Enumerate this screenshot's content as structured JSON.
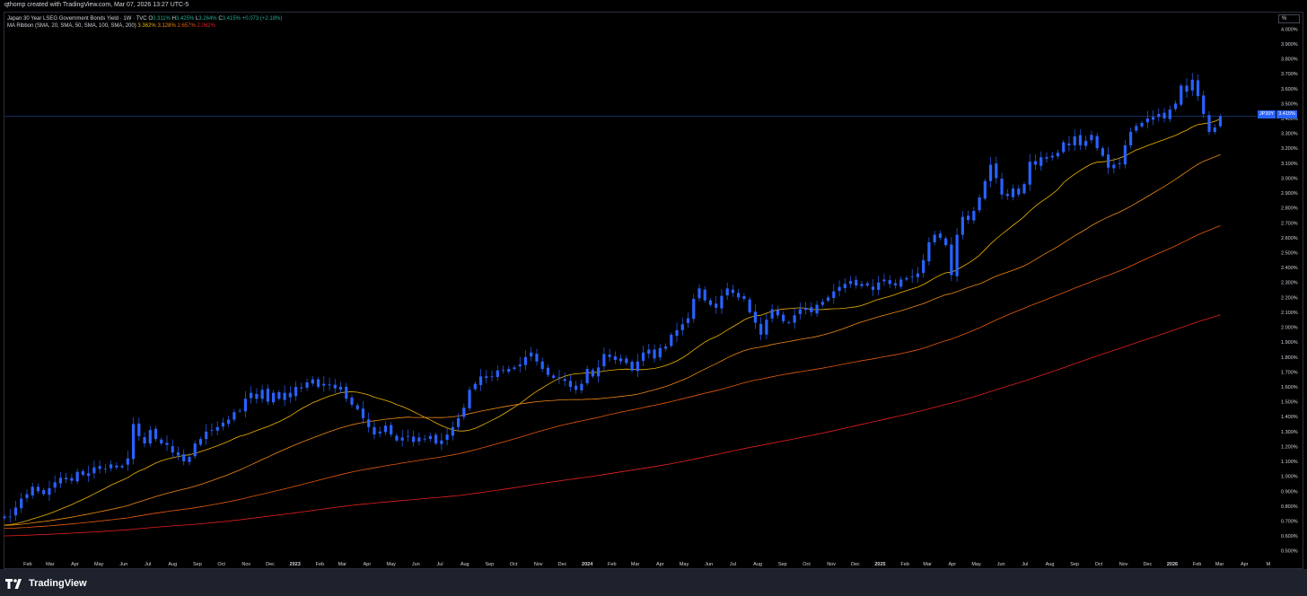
{
  "watermark": "qthomp created with TradingView.com, Mar 07, 2026 13:27 UTC-5",
  "legend": {
    "symbol": "Japan 30 Year LSEG Government Bonds Yield · 1W · TVC",
    "o_label": "O",
    "o": "3.311%",
    "h_label": "H",
    "h": "3.425%",
    "l_label": "L",
    "l": "3.264%",
    "c_label": "C",
    "c": "3.415%",
    "change": "+0.073 (+2.18%)",
    "ma_name": "MA Ribbon (SMA, 20, SMA, 50, SMA, 100, SMA, 200)",
    "ma20": "3.362%",
    "ma50": "3.128%",
    "ma100": "2.657%",
    "ma200": "2.062%"
  },
  "unit_button": "%",
  "price_badge": {
    "symbol": "JP30Y",
    "value": "3.415%"
  },
  "footer": {
    "brand": "TradingView"
  },
  "colors": {
    "background": "#000000",
    "candle": "#2962ff",
    "ma20": "#f0b400",
    "ma50": "#ef8a17",
    "ma100": "#e8590c",
    "ma200": "#e81f1f",
    "legend_value": "#22ab94"
  },
  "chart_data": {
    "type": "candlestick",
    "interval": "1W",
    "y_unit": "%",
    "ylim": [
      0.45,
      4.05
    ],
    "y_ticks": [
      0.5,
      0.6,
      0.7,
      0.8,
      0.9,
      1.0,
      1.1,
      1.2,
      1.3,
      1.4,
      1.5,
      1.6,
      1.7,
      1.8,
      1.9,
      2.0,
      2.1,
      2.2,
      2.3,
      2.4,
      2.5,
      2.6,
      2.7,
      2.8,
      2.9,
      3.0,
      3.1,
      3.2,
      3.3,
      3.4,
      3.5,
      3.6,
      3.7,
      3.8,
      3.9,
      4.0
    ],
    "y_tick_labels": [
      "0.500%",
      "0.600%",
      "0.700%",
      "0.800%",
      "0.900%",
      "1.000%",
      "1.100%",
      "1.200%",
      "1.300%",
      "1.400%",
      "1.500%",
      "1.600%",
      "1.700%",
      "1.800%",
      "1.900%",
      "2.000%",
      "2.100%",
      "2.200%",
      "2.300%",
      "2.400%",
      "2.500%",
      "2.600%",
      "2.700%",
      "2.800%",
      "2.900%",
      "3.000%",
      "3.100%",
      "3.200%",
      "3.300%",
      "3.400%",
      "3.500%",
      "3.600%",
      "3.700%",
      "3.800%",
      "3.900%",
      "4.000%"
    ],
    "x_axis": [
      {
        "label": "Feb",
        "date": "2022-02"
      },
      {
        "label": "Mar",
        "date": "2022-03"
      },
      {
        "label": "Apr",
        "date": "2022-04"
      },
      {
        "label": "May",
        "date": "2022-05"
      },
      {
        "label": "Jun",
        "date": "2022-06"
      },
      {
        "label": "Jul",
        "date": "2022-07"
      },
      {
        "label": "Aug",
        "date": "2022-08"
      },
      {
        "label": "Sep",
        "date": "2022-09"
      },
      {
        "label": "Oct",
        "date": "2022-10"
      },
      {
        "label": "Nov",
        "date": "2022-11"
      },
      {
        "label": "Dec",
        "date": "2022-12"
      },
      {
        "label": "2023",
        "date": "2023-01",
        "bold": true
      },
      {
        "label": "Feb",
        "date": "2023-02"
      },
      {
        "label": "Mar",
        "date": "2023-03"
      },
      {
        "label": "Apr",
        "date": "2023-04"
      },
      {
        "label": "May",
        "date": "2023-05"
      },
      {
        "label": "Jun",
        "date": "2023-06"
      },
      {
        "label": "Jul",
        "date": "2023-07"
      },
      {
        "label": "Aug",
        "date": "2023-08"
      },
      {
        "label": "Sep",
        "date": "2023-09"
      },
      {
        "label": "Oct",
        "date": "2023-10"
      },
      {
        "label": "Nov",
        "date": "2023-11"
      },
      {
        "label": "Dec",
        "date": "2023-12"
      },
      {
        "label": "2024",
        "date": "2024-01",
        "bold": true
      },
      {
        "label": "Feb",
        "date": "2024-02"
      },
      {
        "label": "Mar",
        "date": "2024-03"
      },
      {
        "label": "Apr",
        "date": "2024-04"
      },
      {
        "label": "May",
        "date": "2024-05"
      },
      {
        "label": "Jun",
        "date": "2024-06"
      },
      {
        "label": "Jul",
        "date": "2024-07"
      },
      {
        "label": "Aug",
        "date": "2024-08"
      },
      {
        "label": "Sep",
        "date": "2024-09"
      },
      {
        "label": "Oct",
        "date": "2024-10"
      },
      {
        "label": "Nov",
        "date": "2024-11"
      },
      {
        "label": "Dec",
        "date": "2024-12"
      },
      {
        "label": "2025",
        "date": "2025-01",
        "bold": true
      },
      {
        "label": "Feb",
        "date": "2025-02"
      },
      {
        "label": "Mar",
        "date": "2025-03"
      },
      {
        "label": "Apr",
        "date": "2025-04"
      },
      {
        "label": "May",
        "date": "2025-05"
      },
      {
        "label": "Jun",
        "date": "2025-06"
      },
      {
        "label": "Jul",
        "date": "2025-07"
      },
      {
        "label": "Aug",
        "date": "2025-08"
      },
      {
        "label": "Sep",
        "date": "2025-09"
      },
      {
        "label": "Oct",
        "date": "2025-10"
      },
      {
        "label": "Nov",
        "date": "2025-11"
      },
      {
        "label": "Dec",
        "date": "2025-12"
      },
      {
        "label": "2026",
        "date": "2026-01",
        "bold": true
      },
      {
        "label": "Feb",
        "date": "2026-02"
      },
      {
        "label": "Mar",
        "date": "2026-03"
      },
      {
        "label": "Apr",
        "date": "2026-04"
      },
      {
        "label": "M",
        "date": "2026-05"
      }
    ],
    "x_range": [
      "2022-01-03",
      "2026-05-10"
    ],
    "last_value": 3.415,
    "closes": [
      [
        "2022-01-03",
        0.73
      ],
      [
        "2022-01-10",
        0.73
      ],
      [
        "2022-01-17",
        0.79
      ],
      [
        "2022-01-24",
        0.85
      ],
      [
        "2022-01-31",
        0.88
      ],
      [
        "2022-02-07",
        0.93
      ],
      [
        "2022-02-14",
        0.9
      ],
      [
        "2022-02-21",
        0.88
      ],
      [
        "2022-02-28",
        0.92
      ],
      [
        "2022-03-07",
        0.96
      ],
      [
        "2022-03-14",
        0.99
      ],
      [
        "2022-03-21",
        0.98
      ],
      [
        "2022-03-28",
        0.97
      ],
      [
        "2022-04-04",
        1.03
      ],
      [
        "2022-04-11",
        1.01
      ],
      [
        "2022-04-18",
        1.02
      ],
      [
        "2022-04-25",
        1.06
      ],
      [
        "2022-05-02",
        1.05
      ],
      [
        "2022-05-09",
        1.05
      ],
      [
        "2022-05-16",
        1.08
      ],
      [
        "2022-05-23",
        1.06
      ],
      [
        "2022-05-30",
        1.07
      ],
      [
        "2022-06-06",
        1.12
      ],
      [
        "2022-06-13",
        1.35
      ],
      [
        "2022-06-20",
        1.27
      ],
      [
        "2022-06-27",
        1.22
      ],
      [
        "2022-07-04",
        1.31
      ],
      [
        "2022-07-11",
        1.25
      ],
      [
        "2022-07-18",
        1.22
      ],
      [
        "2022-07-25",
        1.21
      ],
      [
        "2022-08-01",
        1.16
      ],
      [
        "2022-08-08",
        1.14
      ],
      [
        "2022-08-15",
        1.1
      ],
      [
        "2022-08-22",
        1.13
      ],
      [
        "2022-08-29",
        1.22
      ],
      [
        "2022-09-05",
        1.25
      ],
      [
        "2022-09-12",
        1.3
      ],
      [
        "2022-09-19",
        1.31
      ],
      [
        "2022-09-26",
        1.33
      ],
      [
        "2022-10-03",
        1.36
      ],
      [
        "2022-10-10",
        1.38
      ],
      [
        "2022-10-17",
        1.43
      ],
      [
        "2022-10-24",
        1.44
      ],
      [
        "2022-10-31",
        1.52
      ],
      [
        "2022-11-07",
        1.56
      ],
      [
        "2022-11-14",
        1.52
      ],
      [
        "2022-11-21",
        1.58
      ],
      [
        "2022-11-28",
        1.5
      ],
      [
        "2022-12-05",
        1.56
      ],
      [
        "2022-12-12",
        1.52
      ],
      [
        "2022-12-19",
        1.56
      ],
      [
        "2022-12-26",
        1.53
      ],
      [
        "2023-01-02",
        1.6
      ],
      [
        "2023-01-09",
        1.59
      ],
      [
        "2023-01-16",
        1.63
      ],
      [
        "2023-01-23",
        1.65
      ],
      [
        "2023-01-30",
        1.6
      ],
      [
        "2023-02-06",
        1.62
      ],
      [
        "2023-02-13",
        1.61
      ],
      [
        "2023-02-20",
        1.59
      ],
      [
        "2023-02-27",
        1.6
      ],
      [
        "2023-03-06",
        1.52
      ],
      [
        "2023-03-13",
        1.48
      ],
      [
        "2023-03-20",
        1.45
      ],
      [
        "2023-03-27",
        1.39
      ],
      [
        "2023-04-03",
        1.33
      ],
      [
        "2023-04-10",
        1.28
      ],
      [
        "2023-04-17",
        1.3
      ],
      [
        "2023-04-24",
        1.34
      ],
      [
        "2023-05-01",
        1.28
      ],
      [
        "2023-05-08",
        1.24
      ],
      [
        "2023-05-15",
        1.26
      ],
      [
        "2023-05-22",
        1.27
      ],
      [
        "2023-05-29",
        1.23
      ],
      [
        "2023-06-05",
        1.26
      ],
      [
        "2023-06-12",
        1.25
      ],
      [
        "2023-06-19",
        1.27
      ],
      [
        "2023-06-26",
        1.22
      ],
      [
        "2023-07-03",
        1.24
      ],
      [
        "2023-07-10",
        1.28
      ],
      [
        "2023-07-17",
        1.33
      ],
      [
        "2023-07-24",
        1.39
      ],
      [
        "2023-07-31",
        1.46
      ],
      [
        "2023-08-07",
        1.58
      ],
      [
        "2023-08-14",
        1.62
      ],
      [
        "2023-08-21",
        1.67
      ],
      [
        "2023-08-28",
        1.66
      ],
      [
        "2023-09-04",
        1.67
      ],
      [
        "2023-09-11",
        1.71
      ],
      [
        "2023-09-18",
        1.71
      ],
      [
        "2023-09-25",
        1.72
      ],
      [
        "2023-10-02",
        1.73
      ],
      [
        "2023-10-09",
        1.75
      ],
      [
        "2023-10-16",
        1.8
      ],
      [
        "2023-10-23",
        1.83
      ],
      [
        "2023-10-30",
        1.77
      ],
      [
        "2023-11-06",
        1.72
      ],
      [
        "2023-11-13",
        1.68
      ],
      [
        "2023-11-20",
        1.66
      ],
      [
        "2023-11-27",
        1.66
      ],
      [
        "2023-12-04",
        1.64
      ],
      [
        "2023-12-11",
        1.6
      ],
      [
        "2023-12-18",
        1.58
      ],
      [
        "2023-12-25",
        1.62
      ],
      [
        "2024-01-01",
        1.72
      ],
      [
        "2024-01-08",
        1.67
      ],
      [
        "2024-01-15",
        1.73
      ],
      [
        "2024-01-22",
        1.82
      ],
      [
        "2024-01-29",
        1.8
      ],
      [
        "2024-02-05",
        1.78
      ],
      [
        "2024-02-12",
        1.79
      ],
      [
        "2024-02-19",
        1.76
      ],
      [
        "2024-02-26",
        1.71
      ],
      [
        "2024-03-04",
        1.77
      ],
      [
        "2024-03-11",
        1.83
      ],
      [
        "2024-03-18",
        1.85
      ],
      [
        "2024-03-25",
        1.79
      ],
      [
        "2024-04-01",
        1.86
      ],
      [
        "2024-04-08",
        1.87
      ],
      [
        "2024-04-15",
        1.95
      ],
      [
        "2024-04-22",
        1.98
      ],
      [
        "2024-04-29",
        2.02
      ],
      [
        "2024-05-06",
        2.06
      ],
      [
        "2024-05-13",
        2.19
      ],
      [
        "2024-05-20",
        2.26
      ],
      [
        "2024-05-27",
        2.18
      ],
      [
        "2024-06-03",
        2.15
      ],
      [
        "2024-06-10",
        2.13
      ],
      [
        "2024-06-17",
        2.21
      ],
      [
        "2024-06-24",
        2.26
      ],
      [
        "2024-07-01",
        2.23
      ],
      [
        "2024-07-08",
        2.2
      ],
      [
        "2024-07-15",
        2.19
      ],
      [
        "2024-07-22",
        2.1
      ],
      [
        "2024-07-29",
        2.03
      ],
      [
        "2024-08-05",
        1.95
      ],
      [
        "2024-08-12",
        2.05
      ],
      [
        "2024-08-19",
        2.12
      ],
      [
        "2024-08-26",
        2.08
      ],
      [
        "2024-09-02",
        2.04
      ],
      [
        "2024-09-09",
        2.03
      ],
      [
        "2024-09-16",
        2.08
      ],
      [
        "2024-09-23",
        2.12
      ],
      [
        "2024-09-30",
        2.13
      ],
      [
        "2024-10-07",
        2.1
      ],
      [
        "2024-10-14",
        2.15
      ],
      [
        "2024-10-21",
        2.17
      ],
      [
        "2024-10-28",
        2.2
      ],
      [
        "2024-11-04",
        2.24
      ],
      [
        "2024-11-11",
        2.27
      ],
      [
        "2024-11-18",
        2.29
      ],
      [
        "2024-11-25",
        2.31
      ],
      [
        "2024-12-02",
        2.28
      ],
      [
        "2024-12-09",
        2.29
      ],
      [
        "2024-12-16",
        2.28
      ],
      [
        "2024-12-23",
        2.25
      ],
      [
        "2024-12-30",
        2.3
      ],
      [
        "2025-01-06",
        2.32
      ],
      [
        "2025-01-13",
        2.29
      ],
      [
        "2025-01-20",
        2.28
      ],
      [
        "2025-01-27",
        2.32
      ],
      [
        "2025-02-03",
        2.33
      ],
      [
        "2025-02-10",
        2.34
      ],
      [
        "2025-02-17",
        2.36
      ],
      [
        "2025-02-24",
        2.45
      ],
      [
        "2025-03-03",
        2.57
      ],
      [
        "2025-03-10",
        2.62
      ],
      [
        "2025-03-17",
        2.6
      ],
      [
        "2025-03-24",
        2.55
      ],
      [
        "2025-03-31",
        2.35
      ],
      [
        "2025-04-07",
        2.62
      ],
      [
        "2025-04-14",
        2.74
      ],
      [
        "2025-04-21",
        2.72
      ],
      [
        "2025-04-28",
        2.78
      ],
      [
        "2025-05-05",
        2.87
      ],
      [
        "2025-05-12",
        2.98
      ],
      [
        "2025-05-19",
        3.09
      ],
      [
        "2025-05-26",
        3.0
      ],
      [
        "2025-06-02",
        2.89
      ],
      [
        "2025-06-09",
        2.88
      ],
      [
        "2025-06-16",
        2.93
      ],
      [
        "2025-06-23",
        2.89
      ],
      [
        "2025-06-30",
        2.96
      ],
      [
        "2025-07-07",
        3.11
      ],
      [
        "2025-07-14",
        3.09
      ],
      [
        "2025-07-21",
        3.14
      ],
      [
        "2025-07-28",
        3.13
      ],
      [
        "2025-08-04",
        3.15
      ],
      [
        "2025-08-11",
        3.17
      ],
      [
        "2025-08-18",
        3.24
      ],
      [
        "2025-08-25",
        3.22
      ],
      [
        "2025-09-01",
        3.28
      ],
      [
        "2025-09-08",
        3.22
      ],
      [
        "2025-09-15",
        3.25
      ],
      [
        "2025-09-22",
        3.29
      ],
      [
        "2025-09-29",
        3.2
      ],
      [
        "2025-10-06",
        3.15
      ],
      [
        "2025-10-13",
        3.07
      ],
      [
        "2025-10-20",
        3.09
      ],
      [
        "2025-10-27",
        3.1
      ],
      [
        "2025-11-03",
        3.22
      ],
      [
        "2025-11-10",
        3.31
      ],
      [
        "2025-11-17",
        3.35
      ],
      [
        "2025-11-24",
        3.37
      ],
      [
        "2025-12-01",
        3.4
      ],
      [
        "2025-12-08",
        3.41
      ],
      [
        "2025-12-15",
        3.43
      ],
      [
        "2025-12-22",
        3.4
      ],
      [
        "2025-12-29",
        3.46
      ],
      [
        "2026-01-05",
        3.5
      ],
      [
        "2026-01-12",
        3.62
      ],
      [
        "2026-01-19",
        3.58
      ],
      [
        "2026-01-26",
        3.66
      ],
      [
        "2026-02-02",
        3.55
      ],
      [
        "2026-02-09",
        3.43
      ],
      [
        "2026-02-16",
        3.31
      ],
      [
        "2026-02-23",
        3.34
      ],
      [
        "2026-03-02",
        3.415
      ]
    ]
  }
}
